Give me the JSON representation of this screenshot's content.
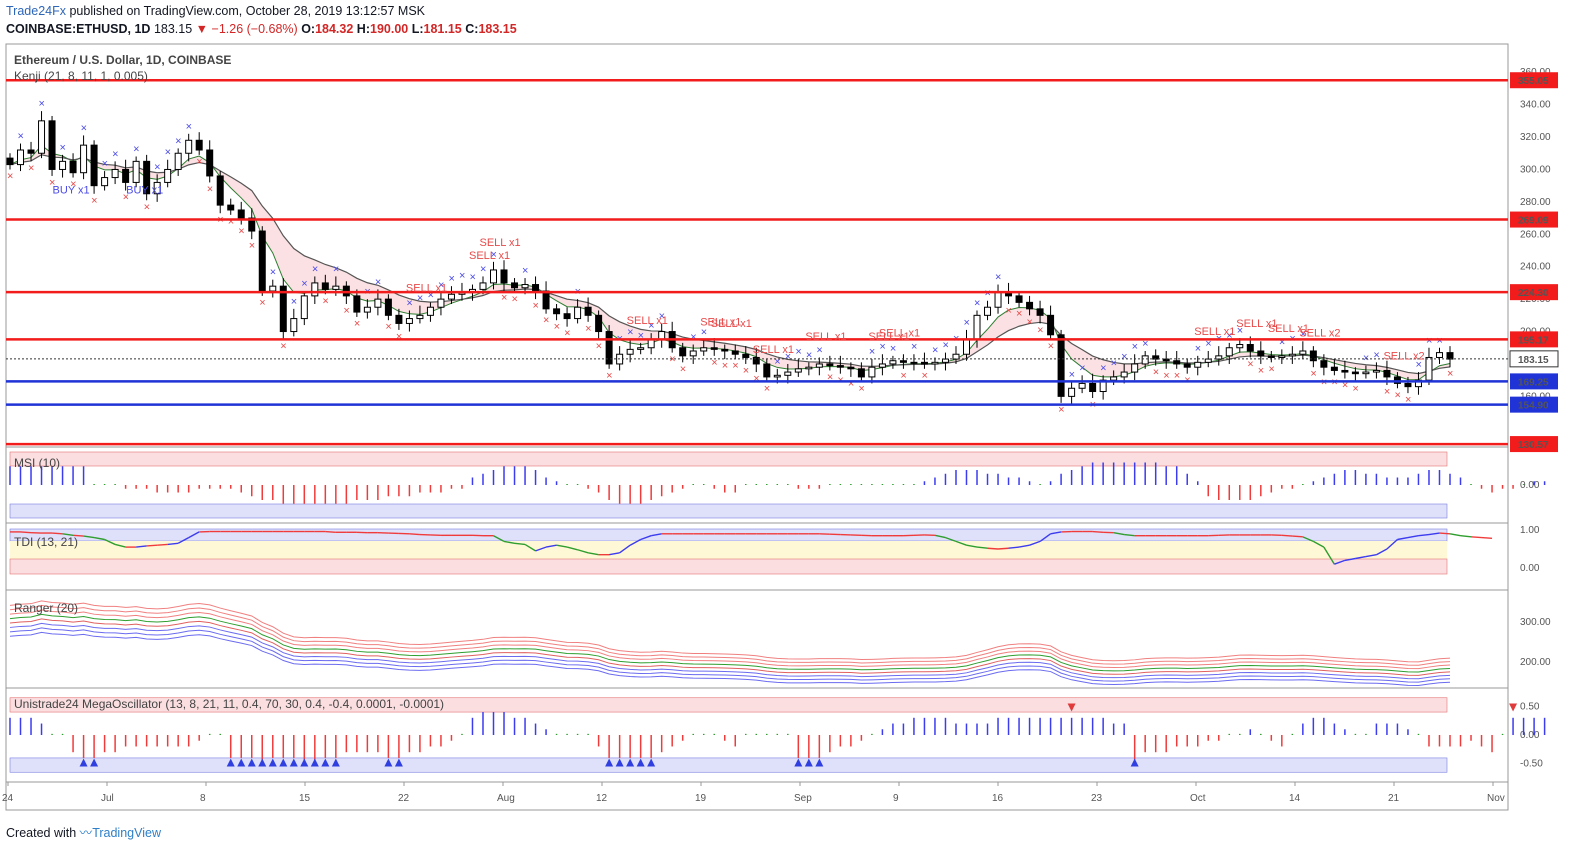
{
  "header": {
    "brand": "Trade24Fx",
    "published": " published on TradingView.com, October 28, 2019 13:12:57 MSK",
    "symbol": "COINBASE:ETHUSD, 1D",
    "last": "183.15",
    "change": "−1.26 (−0.68%)",
    "o_label": "O:",
    "o": "184.32",
    "h_label": "H:",
    "h": "190.00",
    "l_label": "L:",
    "l": "181.15",
    "c_label": "C:",
    "c": "183.15"
  },
  "footer": {
    "created_with": "Created with",
    "tv": "TradingView"
  },
  "chart_data": {
    "type": "candlestick",
    "title": "Ethereum / U.S. Dollar, 1D, COINBASE",
    "indicator_label": "Kenji (21, 8, 11, 1, 0.005)",
    "y_range": [
      130,
      370
    ],
    "y_ticks": [
      160,
      180,
      200,
      220,
      240,
      260,
      280,
      300,
      320,
      340,
      360
    ],
    "x_tick_labels": [
      "24",
      "Jul",
      "8",
      "15",
      "22",
      "Aug",
      "12",
      "19",
      "Sep",
      "9",
      "16",
      "23",
      "Oct",
      "14",
      "21",
      "Nov"
    ],
    "levels": [
      {
        "value": 355.05,
        "label": "355.05",
        "color": "#f21c1c"
      },
      {
        "value": 269.09,
        "label": "269.09",
        "color": "#f21c1c"
      },
      {
        "value": 224.3,
        "label": "224.30",
        "color": "#f21c1c"
      },
      {
        "value": 195.17,
        "label": "195.17",
        "color": "#f21c1c"
      },
      {
        "value": 169.25,
        "label": "169.25",
        "color": "#1f33d6"
      },
      {
        "value": 154.9,
        "label": "154.90",
        "color": "#1f33d6"
      },
      {
        "value": 130.57,
        "label": "130.57",
        "color": "#f21c1c"
      }
    ],
    "last_price": {
      "value": 183.15,
      "label": "183.15"
    },
    "closes": [
      303,
      312,
      310,
      330,
      300,
      305,
      298,
      315,
      290,
      295,
      300,
      292,
      305,
      285,
      292,
      300,
      310,
      318,
      312,
      296,
      278,
      275,
      270,
      262,
      225,
      228,
      200,
      208,
      222,
      230,
      226,
      228,
      222,
      212,
      215,
      220,
      210,
      205,
      208,
      210,
      215,
      220,
      223,
      224,
      226,
      230,
      238,
      230,
      227,
      229,
      225,
      214,
      211,
      208,
      215,
      210,
      200,
      180,
      186,
      189,
      190,
      195,
      200,
      190,
      185,
      188,
      190,
      189,
      188,
      186,
      184,
      180,
      172,
      173,
      175,
      177,
      178,
      180,
      179,
      178,
      177,
      172,
      178,
      180,
      182,
      181,
      181,
      180,
      181,
      183,
      186,
      195,
      210,
      215,
      224,
      222,
      218,
      214,
      210,
      198,
      160,
      165,
      168,
      163,
      170,
      172,
      175,
      180,
      185,
      183,
      182,
      180,
      178,
      181,
      183,
      185,
      190,
      192,
      188,
      185,
      184,
      185,
      186,
      188,
      182,
      178,
      176,
      175,
      174,
      175,
      176,
      172,
      168,
      166,
      170,
      184,
      187,
      183
    ],
    "signals": [
      {
        "label": "BUY x1",
        "index": 5,
        "side": "buy"
      },
      {
        "label": "BUY x1",
        "index": 12,
        "side": "buy"
      },
      {
        "label": "SELL x1",
        "index": 39,
        "side": "sell"
      },
      {
        "label": "SELL x1",
        "index": 45,
        "side": "sell"
      },
      {
        "label": "SELL x1",
        "index": 46,
        "side": "sell"
      },
      {
        "label": "SELL x1",
        "index": 60,
        "side": "sell"
      },
      {
        "label": "SELL x1",
        "index": 67,
        "side": "sell"
      },
      {
        "label": "SELL x1",
        "index": 68,
        "side": "sell"
      },
      {
        "label": "SELL x1",
        "index": 72,
        "side": "sell"
      },
      {
        "label": "SELL x1",
        "index": 77,
        "side": "sell"
      },
      {
        "label": "SELL x1",
        "index": 83,
        "side": "sell"
      },
      {
        "label": "SELL x1",
        "index": 84,
        "side": "sell"
      },
      {
        "label": "SELL x1",
        "index": 114,
        "side": "sell"
      },
      {
        "label": "SELL x1",
        "index": 118,
        "side": "sell"
      },
      {
        "label": "SELL x1",
        "index": 121,
        "side": "sell"
      },
      {
        "label": "SELL x2",
        "index": 124,
        "side": "sell"
      },
      {
        "label": "SELL x2",
        "index": 132,
        "side": "sell"
      }
    ],
    "msi": {
      "label": "MSI (10)",
      "tick": "0.00",
      "values": [
        5,
        5,
        5,
        5,
        5,
        5,
        5,
        5,
        0,
        0,
        0,
        -1,
        -1,
        -1,
        -2,
        -2,
        -2,
        -2,
        -1,
        -1,
        -1,
        -1,
        -2,
        -3,
        -4,
        -4,
        -5,
        -5,
        -5,
        -5,
        -5,
        -5,
        -5,
        -4,
        -4,
        -4,
        -3,
        -3,
        -3,
        -2,
        -2,
        -2,
        -1,
        -1,
        2,
        3,
        4,
        5,
        5,
        5,
        4,
        2,
        1,
        0,
        0,
        -1,
        -2,
        -4,
        -5,
        -5,
        -5,
        -4,
        -3,
        -2,
        -1,
        0,
        0,
        -1,
        -2,
        -2,
        0,
        0,
        0,
        0,
        0,
        -1,
        -1,
        -1,
        0,
        0,
        0,
        0,
        0,
        0,
        0,
        0,
        0,
        1,
        2,
        3,
        4,
        4,
        4,
        3,
        3,
        2,
        2,
        1,
        0,
        1,
        3,
        4,
        5,
        6,
        6,
        6,
        6,
        6,
        6,
        6,
        5,
        5,
        3,
        1,
        -3,
        -4,
        -4,
        -4,
        -4,
        -3,
        -2,
        -1,
        -1,
        0,
        1,
        2,
        3,
        4,
        4,
        3,
        3,
        2,
        2,
        2,
        3,
        4,
        4,
        3,
        2,
        0,
        -1,
        -2,
        -1,
        -1,
        0,
        1,
        1
      ],
      "range": [
        -8,
        8
      ]
    },
    "tdi": {
      "label": "TDI (13, 21)",
      "ticks": [
        "1.00",
        "0.00"
      ],
      "values": [
        0.95,
        0.95,
        0.93,
        0.92,
        0.92,
        0.9,
        0.86,
        0.84,
        0.8,
        0.75,
        0.62,
        0.55,
        0.55,
        0.58,
        0.6,
        0.62,
        0.65,
        0.8,
        0.95,
        0.96,
        0.96,
        0.96,
        0.96,
        0.96,
        0.96,
        0.96,
        0.96,
        0.96,
        0.96,
        0.96,
        0.96,
        0.94,
        0.94,
        0.94,
        0.93,
        0.93,
        0.92,
        0.91,
        0.9,
        0.88,
        0.87,
        0.86,
        0.86,
        0.86,
        0.86,
        0.85,
        0.85,
        0.7,
        0.65,
        0.62,
        0.45,
        0.55,
        0.6,
        0.55,
        0.48,
        0.4,
        0.35,
        0.35,
        0.4,
        0.6,
        0.75,
        0.85,
        0.9,
        0.9,
        0.9,
        0.9,
        0.9,
        0.9,
        0.9,
        0.9,
        0.9,
        0.9,
        0.9,
        0.9,
        0.9,
        0.9,
        0.9,
        0.9,
        0.89,
        0.88,
        0.87,
        0.86,
        0.85,
        0.85,
        0.85,
        0.85,
        0.86,
        0.87,
        0.86,
        0.8,
        0.7,
        0.6,
        0.55,
        0.52,
        0.5,
        0.52,
        0.55,
        0.6,
        0.7,
        0.9,
        0.95,
        0.96,
        0.96,
        0.96,
        0.94,
        0.93,
        0.88,
        0.85,
        0.85,
        0.85,
        0.85,
        0.85,
        0.85,
        0.85,
        0.85,
        0.86,
        0.87,
        0.87,
        0.87,
        0.87,
        0.87,
        0.86,
        0.84,
        0.82,
        0.7,
        0.55,
        0.1,
        0.2,
        0.25,
        0.3,
        0.35,
        0.5,
        0.75,
        0.8,
        0.85,
        0.88,
        0.92,
        0.9,
        0.85,
        0.82,
        0.8,
        0.78
      ],
      "range": [
        0,
        1
      ]
    },
    "ranger": {
      "label": "Ranger (20)",
      "ticks": [
        "300.00",
        "200.00"
      ],
      "range": [
        140,
        370
      ]
    },
    "mega": {
      "label": "Unistrade24 MegaOscillator (13, 8, 21, 11, 0.4, 70, 30, 0.4, -0.4, 0.0001, -0.0001)",
      "ticks": [
        "0.50",
        "0.00",
        "-0.50"
      ],
      "values": [
        0.3,
        0.3,
        0.3,
        0.2,
        0,
        0,
        -0.3,
        -0.4,
        -0.4,
        -0.3,
        -0.3,
        -0.2,
        -0.2,
        -0.2,
        -0.2,
        -0.2,
        -0.2,
        -0.2,
        -0.1,
        0,
        0,
        -0.4,
        -0.4,
        -0.4,
        -0.5,
        -0.4,
        -0.4,
        -0.4,
        -0.5,
        -0.5,
        -0.4,
        -0.4,
        -0.3,
        -0.3,
        -0.3,
        -0.3,
        -0.4,
        -0.4,
        -0.3,
        -0.3,
        -0.2,
        -0.2,
        -0.1,
        0,
        0.3,
        0.4,
        0.4,
        0.4,
        0.3,
        0.3,
        0.2,
        0.1,
        0,
        0,
        0,
        0,
        -0.2,
        -0.4,
        -0.4,
        -0.4,
        -0.4,
        -0.4,
        -0.3,
        -0.2,
        -0.1,
        0,
        0,
        0,
        -0.1,
        -0.2,
        0,
        0,
        0,
        0,
        0,
        -0.4,
        -0.4,
        -0.4,
        -0.3,
        -0.2,
        -0.2,
        -0.1,
        0,
        0.1,
        0.2,
        0.2,
        0.3,
        0.3,
        0.3,
        0.3,
        0.2,
        0.2,
        0.2,
        0.2,
        0.3,
        0.3,
        0.3,
        0.3,
        0.3,
        0.3,
        0.3,
        0.3,
        0.3,
        0.3,
        0.3,
        0.2,
        0.2,
        -0.5,
        -0.3,
        -0.3,
        -0.3,
        -0.2,
        -0.2,
        -0.2,
        -0.1,
        -0.1,
        0,
        0,
        0.1,
        0,
        -0.1,
        -0.2,
        0,
        0.2,
        0.3,
        0.3,
        0.2,
        0.1,
        0,
        0,
        0.2,
        0.2,
        0.2,
        0.1,
        0,
        -0.2,
        -0.2,
        -0.2,
        -0.2,
        -0.1,
        -0.2,
        -0.3,
        0,
        0.3,
        0.3,
        0.3,
        0.3
      ],
      "range": [
        -0.75,
        0.75
      ]
    }
  }
}
